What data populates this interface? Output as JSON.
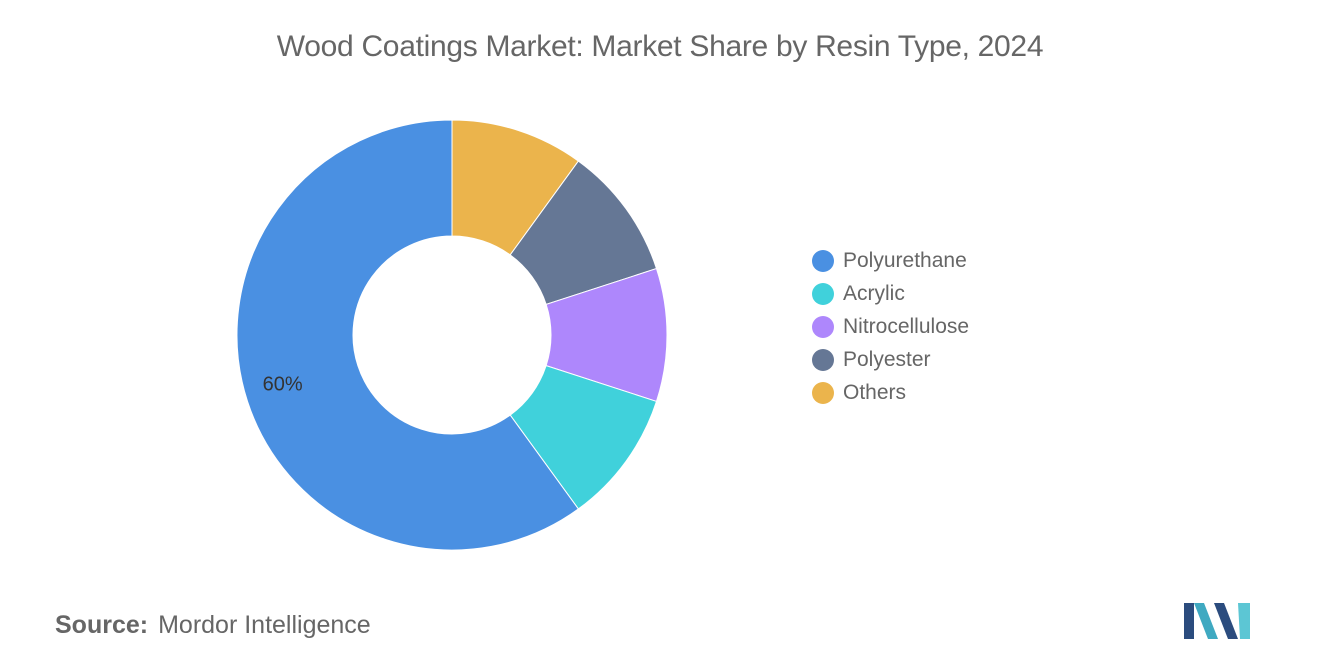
{
  "title": "Wood Coatings Market: Market Share by Resin Type, 2024",
  "chart_data": {
    "type": "pie",
    "donut": true,
    "title": "Wood Coatings Market: Market Share by Resin Type, 2024",
    "series": [
      {
        "name": "Polyurethane",
        "value": 60,
        "color": "#4A90E2"
      },
      {
        "name": "Acrylic",
        "value": 10,
        "color": "#40D1DB"
      },
      {
        "name": "Nitrocellulose",
        "value": 10,
        "color": "#AE87FC"
      },
      {
        "name": "Polyester",
        "value": 10,
        "color": "#657795"
      },
      {
        "name": "Others",
        "value": 10,
        "color": "#EBB44C"
      }
    ],
    "data_labels": [
      {
        "series": "Polyurethane",
        "text": "60%"
      }
    ],
    "legend_position": "right"
  },
  "source": {
    "key": "Source:",
    "value": "Mordor Intelligence"
  },
  "logo": {
    "icon": "mordor-intelligence-logo-icon",
    "colors": [
      "#2B4C7E",
      "#3FA9C1",
      "#5CC6D4"
    ]
  }
}
